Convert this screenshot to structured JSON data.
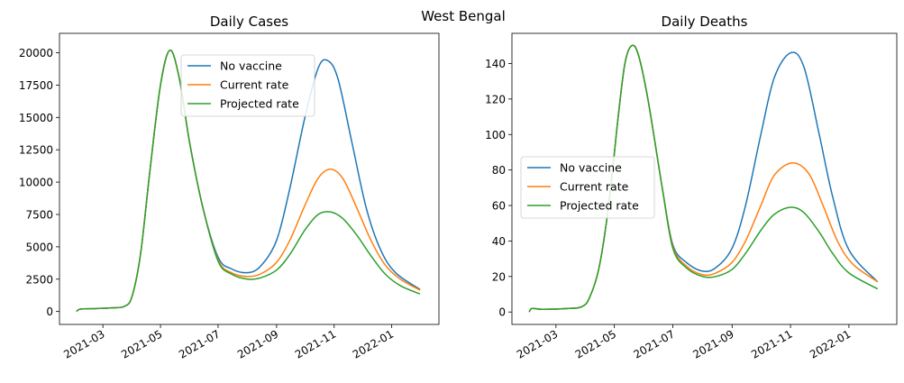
{
  "figure": {
    "suptitle": "West Bengal"
  },
  "colors": {
    "No vaccine": "#1f77b4",
    "Current rate": "#ff7f0e",
    "Projected rate": "#2ca02c"
  },
  "chart_data": [
    {
      "type": "line",
      "title": "Daily Cases",
      "xlabel": "",
      "ylabel": "",
      "x_range": [
        "2021-02-01",
        "2022-01-31"
      ],
      "xlim": [
        "2021-01-14",
        "2022-02-20"
      ],
      "ylim": [
        -1000,
        21500
      ],
      "x_ticks": [
        "2021-03",
        "2021-05",
        "2021-07",
        "2021-09",
        "2021-11",
        "2022-01"
      ],
      "y_ticks": [
        0,
        2500,
        5000,
        7500,
        10000,
        12500,
        15000,
        17500,
        20000
      ],
      "y_tick_labels": [
        "0",
        "2500",
        "5000",
        "7500",
        "10000",
        "12500",
        "15000",
        "17500",
        "20000"
      ],
      "legend": {
        "placement": "upper center",
        "entries": [
          "No vaccine",
          "Current rate",
          "Projected rate"
        ]
      },
      "grid": false,
      "series": [
        {
          "name": "No vaccine",
          "points": [
            [
              "2021-02-01",
              0
            ],
            [
              "2021-02-05",
              180
            ],
            [
              "2021-02-20",
              220
            ],
            [
              "2021-03-10",
              280
            ],
            [
              "2021-03-24",
              400
            ],
            [
              "2021-04-01",
              1200
            ],
            [
              "2021-04-10",
              4500
            ],
            [
              "2021-04-20",
              11000
            ],
            [
              "2021-05-01",
              17500
            ],
            [
              "2021-05-11",
              20200
            ],
            [
              "2021-05-21",
              18000
            ],
            [
              "2021-06-01",
              13000
            ],
            [
              "2021-06-15",
              8000
            ],
            [
              "2021-07-01",
              4200
            ],
            [
              "2021-07-15",
              3300
            ],
            [
              "2021-08-01",
              3000
            ],
            [
              "2021-08-15",
              3500
            ],
            [
              "2021-09-01",
              5500
            ],
            [
              "2021-09-15",
              9500
            ],
            [
              "2021-10-01",
              15000
            ],
            [
              "2021-10-15",
              18800
            ],
            [
              "2021-10-25",
              19400
            ],
            [
              "2021-11-05",
              18000
            ],
            [
              "2021-11-20",
              13000
            ],
            [
              "2021-12-05",
              8000
            ],
            [
              "2021-12-20",
              4800
            ],
            [
              "2022-01-05",
              3000
            ],
            [
              "2022-01-31",
              1700
            ]
          ]
        },
        {
          "name": "Current rate",
          "points": [
            [
              "2021-02-01",
              0
            ],
            [
              "2021-02-05",
              180
            ],
            [
              "2021-02-20",
              220
            ],
            [
              "2021-03-10",
              280
            ],
            [
              "2021-03-24",
              400
            ],
            [
              "2021-04-01",
              1200
            ],
            [
              "2021-04-10",
              4500
            ],
            [
              "2021-04-20",
              11000
            ],
            [
              "2021-05-01",
              17500
            ],
            [
              "2021-05-11",
              20200
            ],
            [
              "2021-05-21",
              18000
            ],
            [
              "2021-06-01",
              13000
            ],
            [
              "2021-06-15",
              8000
            ],
            [
              "2021-07-01",
              4000
            ],
            [
              "2021-07-15",
              3000
            ],
            [
              "2021-08-01",
              2700
            ],
            [
              "2021-08-15",
              2900
            ],
            [
              "2021-09-01",
              3800
            ],
            [
              "2021-09-15",
              5500
            ],
            [
              "2021-10-01",
              8200
            ],
            [
              "2021-10-15",
              10300
            ],
            [
              "2021-10-28",
              11000
            ],
            [
              "2021-11-10",
              10300
            ],
            [
              "2021-11-25",
              8000
            ],
            [
              "2021-12-10",
              5500
            ],
            [
              "2021-12-25",
              3600
            ],
            [
              "2022-01-10",
              2500
            ],
            [
              "2022-01-31",
              1650
            ]
          ]
        },
        {
          "name": "Projected rate",
          "points": [
            [
              "2021-02-01",
              0
            ],
            [
              "2021-02-05",
              180
            ],
            [
              "2021-02-20",
              220
            ],
            [
              "2021-03-10",
              280
            ],
            [
              "2021-03-24",
              400
            ],
            [
              "2021-04-01",
              1200
            ],
            [
              "2021-04-10",
              4500
            ],
            [
              "2021-04-20",
              11000
            ],
            [
              "2021-05-01",
              17500
            ],
            [
              "2021-05-11",
              20200
            ],
            [
              "2021-05-21",
              18000
            ],
            [
              "2021-06-01",
              13000
            ],
            [
              "2021-06-15",
              8000
            ],
            [
              "2021-07-01",
              3900
            ],
            [
              "2021-07-15",
              2900
            ],
            [
              "2021-08-01",
              2500
            ],
            [
              "2021-08-15",
              2600
            ],
            [
              "2021-09-01",
              3200
            ],
            [
              "2021-09-15",
              4400
            ],
            [
              "2021-10-01",
              6300
            ],
            [
              "2021-10-15",
              7500
            ],
            [
              "2021-10-28",
              7700
            ],
            [
              "2021-11-10",
              7200
            ],
            [
              "2021-11-25",
              5900
            ],
            [
              "2021-12-10",
              4300
            ],
            [
              "2021-12-25",
              2900
            ],
            [
              "2022-01-10",
              2000
            ],
            [
              "2022-01-31",
              1350
            ]
          ]
        }
      ]
    },
    {
      "type": "line",
      "title": "Daily Deaths",
      "xlabel": "",
      "ylabel": "",
      "x_range": [
        "2021-02-01",
        "2022-01-31"
      ],
      "xlim": [
        "2021-01-14",
        "2022-02-20"
      ],
      "ylim": [
        -7,
        157
      ],
      "x_ticks": [
        "2021-03",
        "2021-05",
        "2021-07",
        "2021-09",
        "2021-11",
        "2022-01"
      ],
      "y_ticks": [
        0,
        20,
        40,
        60,
        80,
        100,
        120,
        140
      ],
      "y_tick_labels": [
        "0",
        "20",
        "40",
        "60",
        "80",
        "100",
        "120",
        "140"
      ],
      "legend": {
        "placement": "center left",
        "entries": [
          "No vaccine",
          "Current rate",
          "Projected rate"
        ]
      },
      "grid": false,
      "series": [
        {
          "name": "No vaccine",
          "points": [
            [
              "2021-02-01",
              0
            ],
            [
              "2021-02-04",
              2
            ],
            [
              "2021-02-15",
              1.5
            ],
            [
              "2021-03-15",
              2
            ],
            [
              "2021-03-28",
              3
            ],
            [
              "2021-04-05",
              8
            ],
            [
              "2021-04-15",
              25
            ],
            [
              "2021-04-25",
              60
            ],
            [
              "2021-05-05",
              110
            ],
            [
              "2021-05-12",
              140
            ],
            [
              "2021-05-19",
              150
            ],
            [
              "2021-05-26",
              145
            ],
            [
              "2021-06-05",
              120
            ],
            [
              "2021-06-20",
              70
            ],
            [
              "2021-07-01",
              38
            ],
            [
              "2021-07-15",
              28
            ],
            [
              "2021-08-01",
              23
            ],
            [
              "2021-08-15",
              25
            ],
            [
              "2021-09-01",
              36
            ],
            [
              "2021-09-15",
              60
            ],
            [
              "2021-10-01",
              100
            ],
            [
              "2021-10-15",
              132
            ],
            [
              "2021-11-01",
              146
            ],
            [
              "2021-11-15",
              138
            ],
            [
              "2021-12-01",
              100
            ],
            [
              "2021-12-15",
              65
            ],
            [
              "2022-01-01",
              35
            ],
            [
              "2022-01-31",
              17
            ]
          ]
        },
        {
          "name": "Current rate",
          "points": [
            [
              "2021-02-01",
              0
            ],
            [
              "2021-02-04",
              2
            ],
            [
              "2021-02-15",
              1.5
            ],
            [
              "2021-03-15",
              2
            ],
            [
              "2021-03-28",
              3
            ],
            [
              "2021-04-05",
              8
            ],
            [
              "2021-04-15",
              25
            ],
            [
              "2021-04-25",
              60
            ],
            [
              "2021-05-05",
              110
            ],
            [
              "2021-05-12",
              140
            ],
            [
              "2021-05-19",
              150
            ],
            [
              "2021-05-26",
              145
            ],
            [
              "2021-06-05",
              120
            ],
            [
              "2021-06-20",
              70
            ],
            [
              "2021-07-01",
              37
            ],
            [
              "2021-07-15",
              26
            ],
            [
              "2021-08-01",
              21
            ],
            [
              "2021-08-15",
              22
            ],
            [
              "2021-09-01",
              28
            ],
            [
              "2021-09-15",
              40
            ],
            [
              "2021-10-01",
              60
            ],
            [
              "2021-10-15",
              77
            ],
            [
              "2021-11-03",
              84
            ],
            [
              "2021-11-20",
              78
            ],
            [
              "2021-12-05",
              60
            ],
            [
              "2021-12-20",
              40
            ],
            [
              "2022-01-05",
              27
            ],
            [
              "2022-01-31",
              17
            ]
          ]
        },
        {
          "name": "Projected rate",
          "points": [
            [
              "2021-02-01",
              0
            ],
            [
              "2021-02-04",
              2
            ],
            [
              "2021-02-15",
              1.5
            ],
            [
              "2021-03-15",
              2
            ],
            [
              "2021-03-28",
              3
            ],
            [
              "2021-04-05",
              8
            ],
            [
              "2021-04-15",
              25
            ],
            [
              "2021-04-25",
              60
            ],
            [
              "2021-05-05",
              110
            ],
            [
              "2021-05-12",
              140
            ],
            [
              "2021-05-19",
              150
            ],
            [
              "2021-05-26",
              145
            ],
            [
              "2021-06-05",
              120
            ],
            [
              "2021-06-20",
              70
            ],
            [
              "2021-07-01",
              36
            ],
            [
              "2021-07-15",
              25
            ],
            [
              "2021-08-01",
              20
            ],
            [
              "2021-08-15",
              20
            ],
            [
              "2021-09-01",
              24
            ],
            [
              "2021-09-15",
              33
            ],
            [
              "2021-10-01",
              46
            ],
            [
              "2021-10-15",
              55
            ],
            [
              "2021-11-01",
              59
            ],
            [
              "2021-11-15",
              56
            ],
            [
              "2021-12-01",
              45
            ],
            [
              "2021-12-15",
              33
            ],
            [
              "2022-01-01",
              22
            ],
            [
              "2022-01-31",
              13
            ]
          ]
        }
      ]
    }
  ]
}
